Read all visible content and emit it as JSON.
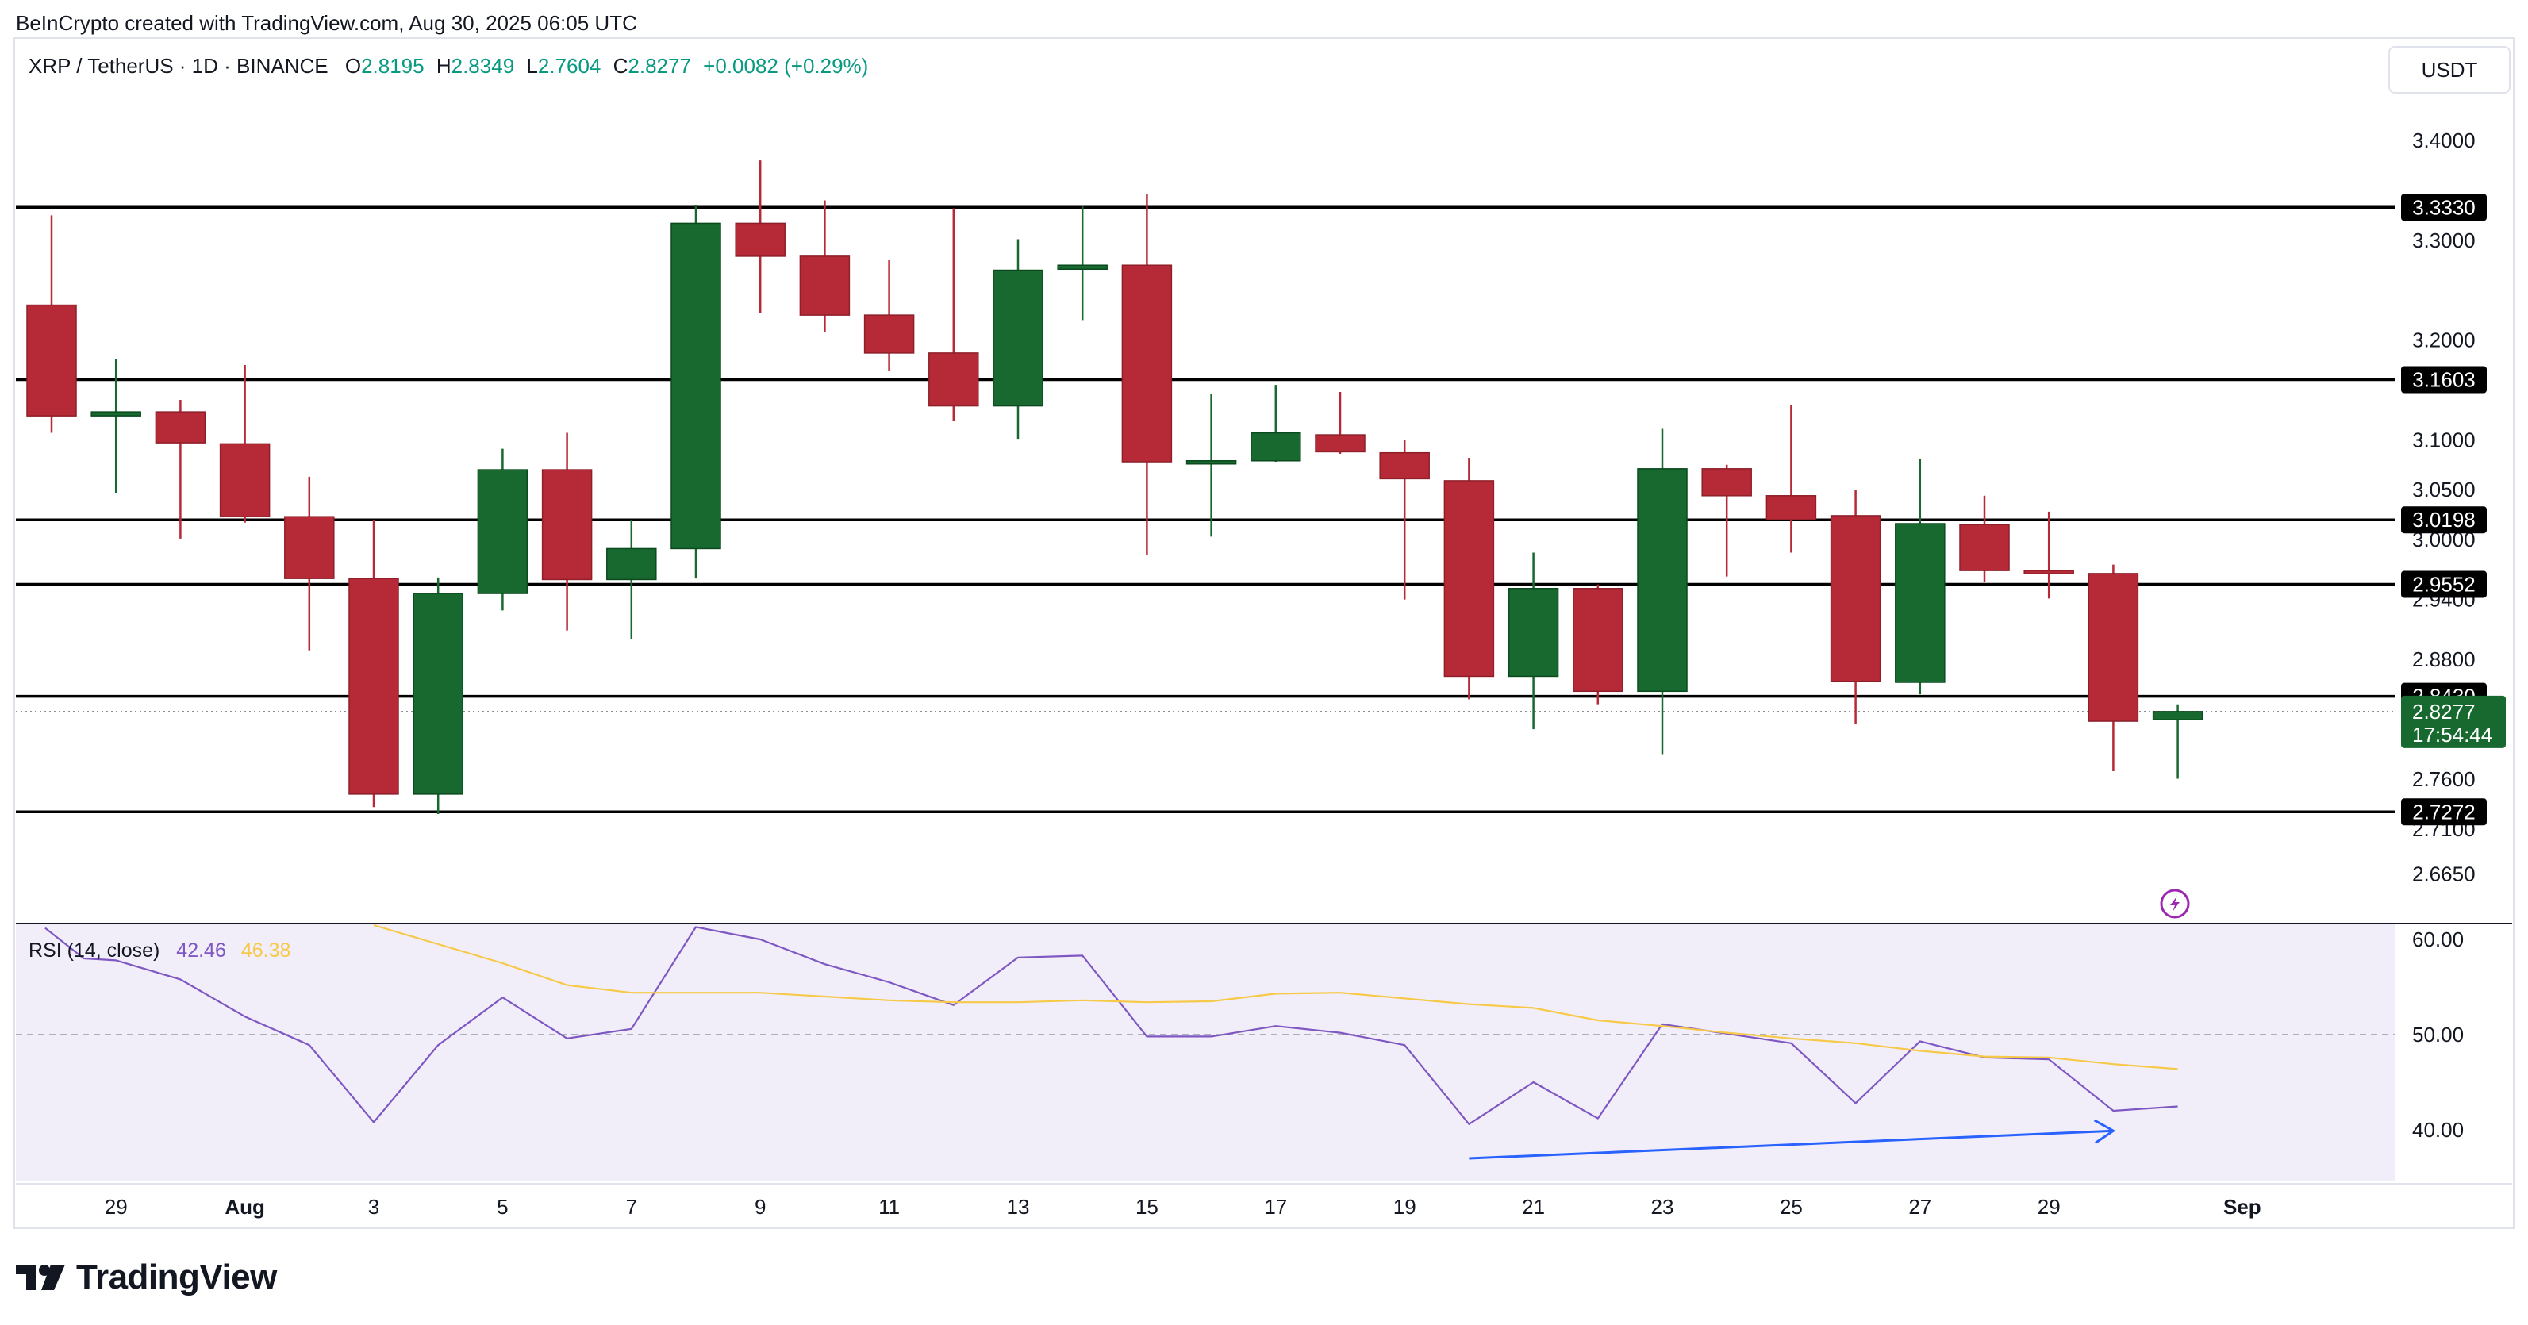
{
  "header": {
    "credit": "BeInCrypto created with TradingView.com, Aug 30, 2025 06:05 UTC"
  },
  "legend": {
    "symbol": "XRP / TetherUS · 1D · BINANCE",
    "open_label": "O",
    "open": "2.8195",
    "high_label": "H",
    "high": "2.8349",
    "low_label": "L",
    "low": "2.7604",
    "close_label": "C",
    "close": "2.8277",
    "change": "+0.0082 (+0.29%)"
  },
  "currency": "USDT",
  "current_price_label": {
    "price": "2.8277",
    "countdown": "17:54:44"
  },
  "rsi_legend": {
    "name": "RSI (14, close)",
    "rsi": "42.46",
    "ma": "46.38"
  },
  "logo": {
    "text": "TradingView"
  },
  "colors": {
    "up": "#17692f",
    "down": "#b62a37",
    "level": "#000000",
    "rsi": "#7e57c2",
    "rsi_ma": "#f7c948",
    "rsi_bg": "#f1eefa",
    "divergence": "#2962ff"
  },
  "chart_data": [
    {
      "type": "candlestick",
      "title": "XRP / TetherUS · 1D · BINANCE",
      "ylim": [
        2.62,
        3.45
      ],
      "y_ticks": [
        2.665,
        2.71,
        2.76,
        2.88,
        2.94,
        3.0,
        3.05,
        3.1,
        3.2,
        3.3,
        3.4
      ],
      "y_tick_labels": [
        "2.6650",
        "2.7100",
        "2.7600",
        "2.8800",
        "2.9400",
        "3.0000",
        "3.0500",
        "3.1000",
        "3.2000",
        "3.3000",
        "3.4000"
      ],
      "x_tick_labels": [
        {
          "day": 29,
          "label": "29"
        },
        {
          "day": 31,
          "label": "Aug"
        },
        {
          "day": 33,
          "label": "3"
        },
        {
          "day": 35,
          "label": "5"
        },
        {
          "day": 37,
          "label": "7"
        },
        {
          "day": 39,
          "label": "9"
        },
        {
          "day": 41,
          "label": "11"
        },
        {
          "day": 43,
          "label": "13"
        },
        {
          "day": 45,
          "label": "15"
        },
        {
          "day": 47,
          "label": "17"
        },
        {
          "day": 49,
          "label": "19"
        },
        {
          "day": 51,
          "label": "21"
        },
        {
          "day": 53,
          "label": "23"
        },
        {
          "day": 55,
          "label": "25"
        },
        {
          "day": 57,
          "label": "27"
        },
        {
          "day": 59,
          "label": "29"
        },
        {
          "day": 62,
          "label": "Sep"
        }
      ],
      "levels": [
        {
          "price": 3.333,
          "label": "3.3330"
        },
        {
          "price": 3.1603,
          "label": "3.1603"
        },
        {
          "price": 3.0198,
          "label": "3.0198"
        },
        {
          "price": 2.9552,
          "label": "2.9552"
        },
        {
          "price": 2.843,
          "label": "2.8430"
        },
        {
          "price": 2.7272,
          "label": "2.7272"
        }
      ],
      "current_price": 2.8277,
      "candles": [
        {
          "day": 28,
          "o": 3.235,
          "h": 3.325,
          "l": 3.107,
          "c": 3.124
        },
        {
          "day": 29,
          "o": 3.124,
          "h": 3.181,
          "l": 3.047,
          "c": 3.128
        },
        {
          "day": 30,
          "o": 3.128,
          "h": 3.14,
          "l": 3.001,
          "c": 3.097
        },
        {
          "day": 31,
          "o": 3.096,
          "h": 3.175,
          "l": 3.017,
          "c": 3.023
        },
        {
          "day": 32,
          "o": 3.023,
          "h": 3.063,
          "l": 2.889,
          "c": 2.961
        },
        {
          "day": 33,
          "o": 2.961,
          "h": 3.02,
          "l": 2.732,
          "c": 2.745
        },
        {
          "day": 34,
          "o": 2.745,
          "h": 2.962,
          "l": 2.725,
          "c": 2.946
        },
        {
          "day": 35,
          "o": 2.946,
          "h": 3.091,
          "l": 2.929,
          "c": 3.07
        },
        {
          "day": 36,
          "o": 3.07,
          "h": 3.107,
          "l": 2.909,
          "c": 2.96
        },
        {
          "day": 37,
          "o": 2.96,
          "h": 3.02,
          "l": 2.9,
          "c": 2.991
        },
        {
          "day": 38,
          "o": 2.991,
          "h": 3.335,
          "l": 2.961,
          "c": 3.317
        },
        {
          "day": 39,
          "o": 3.317,
          "h": 3.38,
          "l": 3.227,
          "c": 3.284
        },
        {
          "day": 40,
          "o": 3.284,
          "h": 3.34,
          "l": 3.208,
          "c": 3.225
        },
        {
          "day": 41,
          "o": 3.225,
          "h": 3.28,
          "l": 3.169,
          "c": 3.187
        },
        {
          "day": 42,
          "o": 3.187,
          "h": 3.332,
          "l": 3.119,
          "c": 3.134
        },
        {
          "day": 43,
          "o": 3.134,
          "h": 3.301,
          "l": 3.101,
          "c": 3.27
        },
        {
          "day": 44,
          "o": 3.271,
          "h": 3.334,
          "l": 3.22,
          "c": 3.275
        },
        {
          "day": 45,
          "o": 3.275,
          "h": 3.346,
          "l": 2.985,
          "c": 3.078
        },
        {
          "day": 46,
          "o": 3.078,
          "h": 3.146,
          "l": 3.003,
          "c": 3.079
        },
        {
          "day": 47,
          "o": 3.079,
          "h": 3.155,
          "l": 3.078,
          "c": 3.107
        },
        {
          "day": 48,
          "o": 3.105,
          "h": 3.148,
          "l": 3.086,
          "c": 3.088
        },
        {
          "day": 49,
          "o": 3.087,
          "h": 3.1,
          "l": 2.94,
          "c": 3.061
        },
        {
          "day": 50,
          "o": 3.059,
          "h": 3.082,
          "l": 2.84,
          "c": 2.863
        },
        {
          "day": 51,
          "o": 2.863,
          "h": 2.987,
          "l": 2.81,
          "c": 2.951
        },
        {
          "day": 52,
          "o": 2.951,
          "h": 2.955,
          "l": 2.835,
          "c": 2.848
        },
        {
          "day": 53,
          "o": 2.848,
          "h": 3.111,
          "l": 2.785,
          "c": 3.071
        },
        {
          "day": 54,
          "o": 3.071,
          "h": 3.075,
          "l": 2.963,
          "c": 3.044
        },
        {
          "day": 55,
          "o": 3.044,
          "h": 3.135,
          "l": 2.987,
          "c": 3.02
        },
        {
          "day": 56,
          "o": 3.024,
          "h": 3.05,
          "l": 2.815,
          "c": 2.858
        },
        {
          "day": 57,
          "o": 2.857,
          "h": 3.081,
          "l": 2.845,
          "c": 3.016
        },
        {
          "day": 58,
          "o": 3.015,
          "h": 3.044,
          "l": 2.958,
          "c": 2.969
        },
        {
          "day": 59,
          "o": 2.969,
          "h": 3.028,
          "l": 2.941,
          "c": 2.966
        },
        {
          "day": 60,
          "o": 2.966,
          "h": 2.975,
          "l": 2.768,
          "c": 2.818
        },
        {
          "day": 61,
          "o": 2.8195,
          "h": 2.8349,
          "l": 2.7604,
          "c": 2.8277
        }
      ]
    },
    {
      "type": "line",
      "title": "RSI (14, close)",
      "ylim": [
        34.0,
        61.5
      ],
      "y_ticks": [
        40,
        50,
        60
      ],
      "y_tick_labels": [
        "40.00",
        "50.00",
        "60.00"
      ],
      "midline": 50,
      "series": [
        {
          "name": "RSI",
          "x": [
            27.9,
            28.5,
            29,
            30,
            31,
            32,
            33,
            34,
            35,
            36,
            37,
            38,
            39,
            40,
            41,
            42,
            43,
            44,
            45,
            46,
            47,
            48,
            49,
            50,
            51,
            52,
            53,
            54,
            55,
            56,
            57,
            58,
            59,
            60,
            61
          ],
          "values": [
            61.2,
            58.0,
            57.8,
            55.8,
            51.9,
            48.9,
            40.8,
            48.9,
            53.9,
            49.6,
            50.6,
            61.3,
            60.0,
            57.4,
            55.5,
            53.1,
            58.1,
            58.3,
            49.8,
            49.8,
            50.9,
            50.2,
            48.9,
            40.6,
            45.0,
            41.2,
            51.1,
            50.1,
            49.1,
            42.8,
            49.3,
            47.6,
            47.4,
            42.0,
            42.46
          ]
        },
        {
          "name": "RSI-based MA",
          "x": [
            33,
            34,
            35,
            36,
            37,
            38,
            39,
            40,
            41,
            42,
            43,
            44,
            45,
            46,
            47,
            48,
            49,
            50,
            51,
            52,
            53,
            54,
            55,
            56,
            57,
            58,
            59,
            60,
            61
          ],
          "values": [
            61.5,
            59.5,
            57.5,
            55.2,
            54.4,
            54.4,
            54.4,
            54.0,
            53.6,
            53.4,
            53.4,
            53.6,
            53.4,
            53.5,
            54.3,
            54.4,
            53.8,
            53.2,
            52.8,
            51.5,
            50.9,
            50.2,
            49.6,
            49.1,
            48.3,
            47.7,
            47.6,
            46.9,
            46.38
          ]
        }
      ],
      "divergence_arrow": {
        "x": [
          50.0,
          60.0
        ],
        "values": [
          37.0,
          39.9
        ]
      }
    }
  ]
}
